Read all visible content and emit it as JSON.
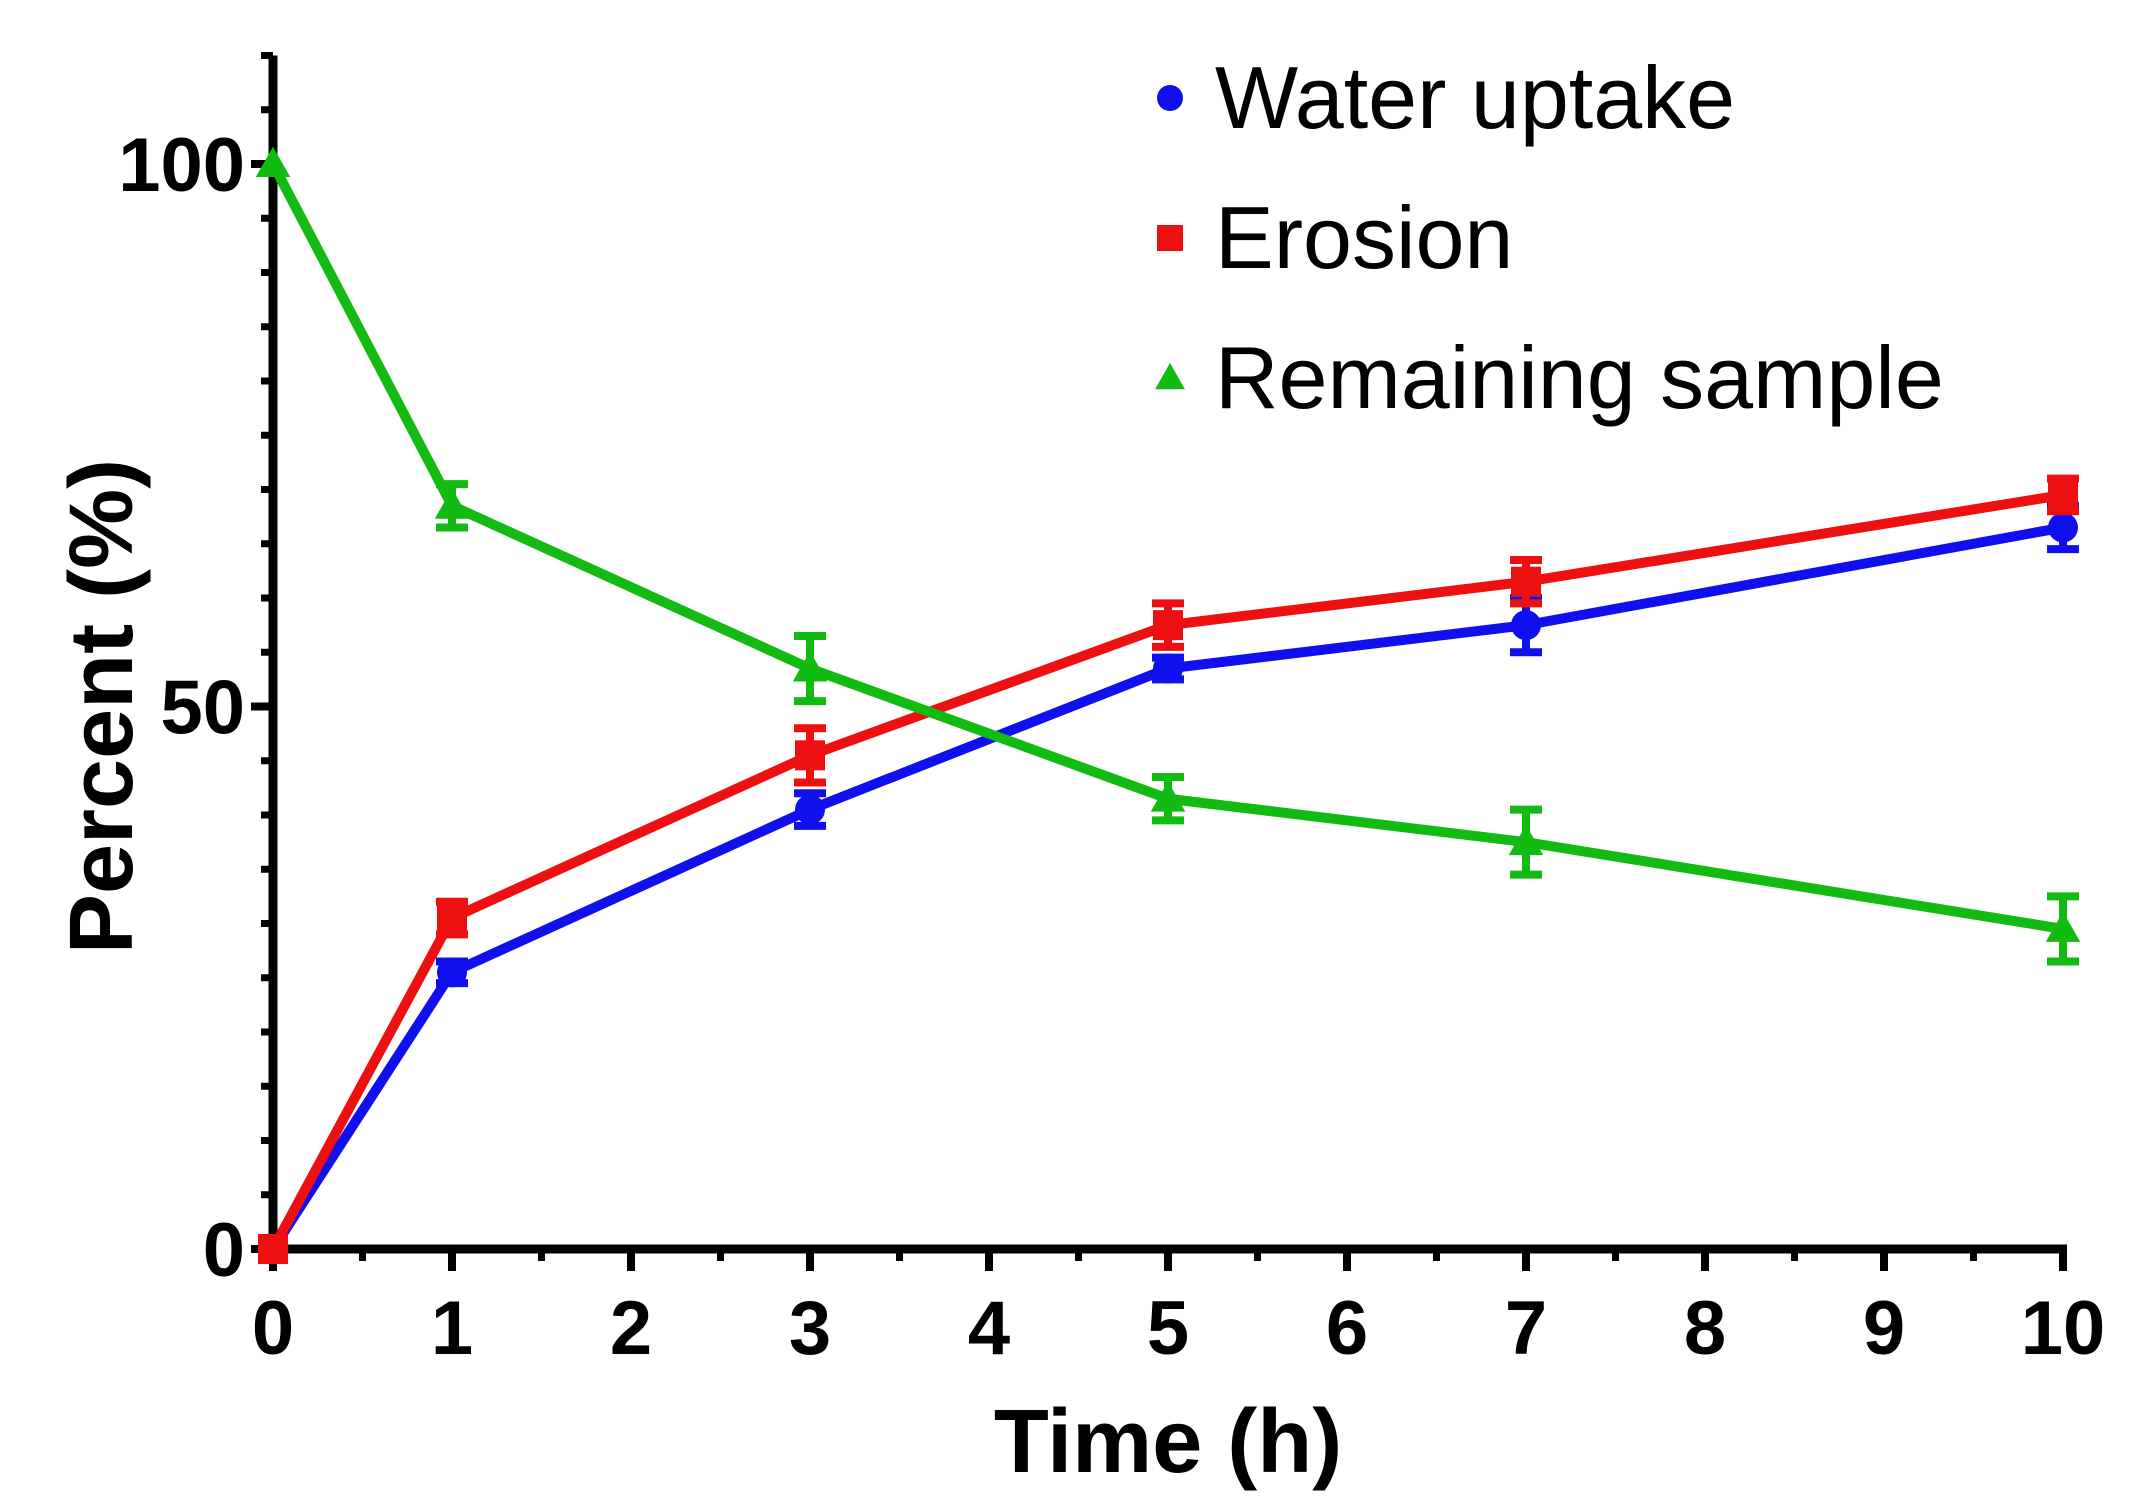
{
  "chart_data": {
    "type": "line",
    "title": "",
    "xlabel": "Time (h)",
    "ylabel": "Percent (%)",
    "xlim": [
      0,
      10
    ],
    "ylim": [
      0,
      110
    ],
    "x_ticks": [
      "0",
      "1",
      "2",
      "3",
      "4",
      "5",
      "6",
      "7",
      "8",
      "9",
      "10"
    ],
    "y_ticks": [
      "0",
      "50",
      "100"
    ],
    "x_tick_values": [
      0,
      1,
      2,
      3,
      4,
      5,
      6,
      7,
      8,
      9,
      10
    ],
    "y_tick_values": [
      0,
      50,
      100
    ],
    "y_minor_step": 5,
    "x_minor_step": 0.5,
    "grid": false,
    "legend_position": "top-right",
    "x": [
      0,
      1,
      3,
      5,
      7,
      10
    ],
    "series": [
      {
        "name": "Water uptake",
        "color": "#1010ee",
        "marker": "circle",
        "values": [
          0,
          25.5,
          40.5,
          53.5,
          57.5,
          66.5
        ],
        "errors": [
          0,
          1,
          1.5,
          1,
          2.5,
          2
        ]
      },
      {
        "name": "Erosion",
        "color": "#ee1010",
        "marker": "square",
        "values": [
          0,
          30.5,
          45.5,
          57.5,
          61.5,
          69.5
        ],
        "errors": [
          0,
          1.5,
          2.5,
          2,
          2,
          1.5
        ]
      },
      {
        "name": "Remaining sample",
        "color": "#11bb11",
        "marker": "triangle",
        "values": [
          100,
          68.5,
          53.5,
          41.5,
          37.5,
          29.5
        ],
        "errors": [
          0,
          2,
          3,
          2,
          3,
          3
        ]
      }
    ]
  }
}
